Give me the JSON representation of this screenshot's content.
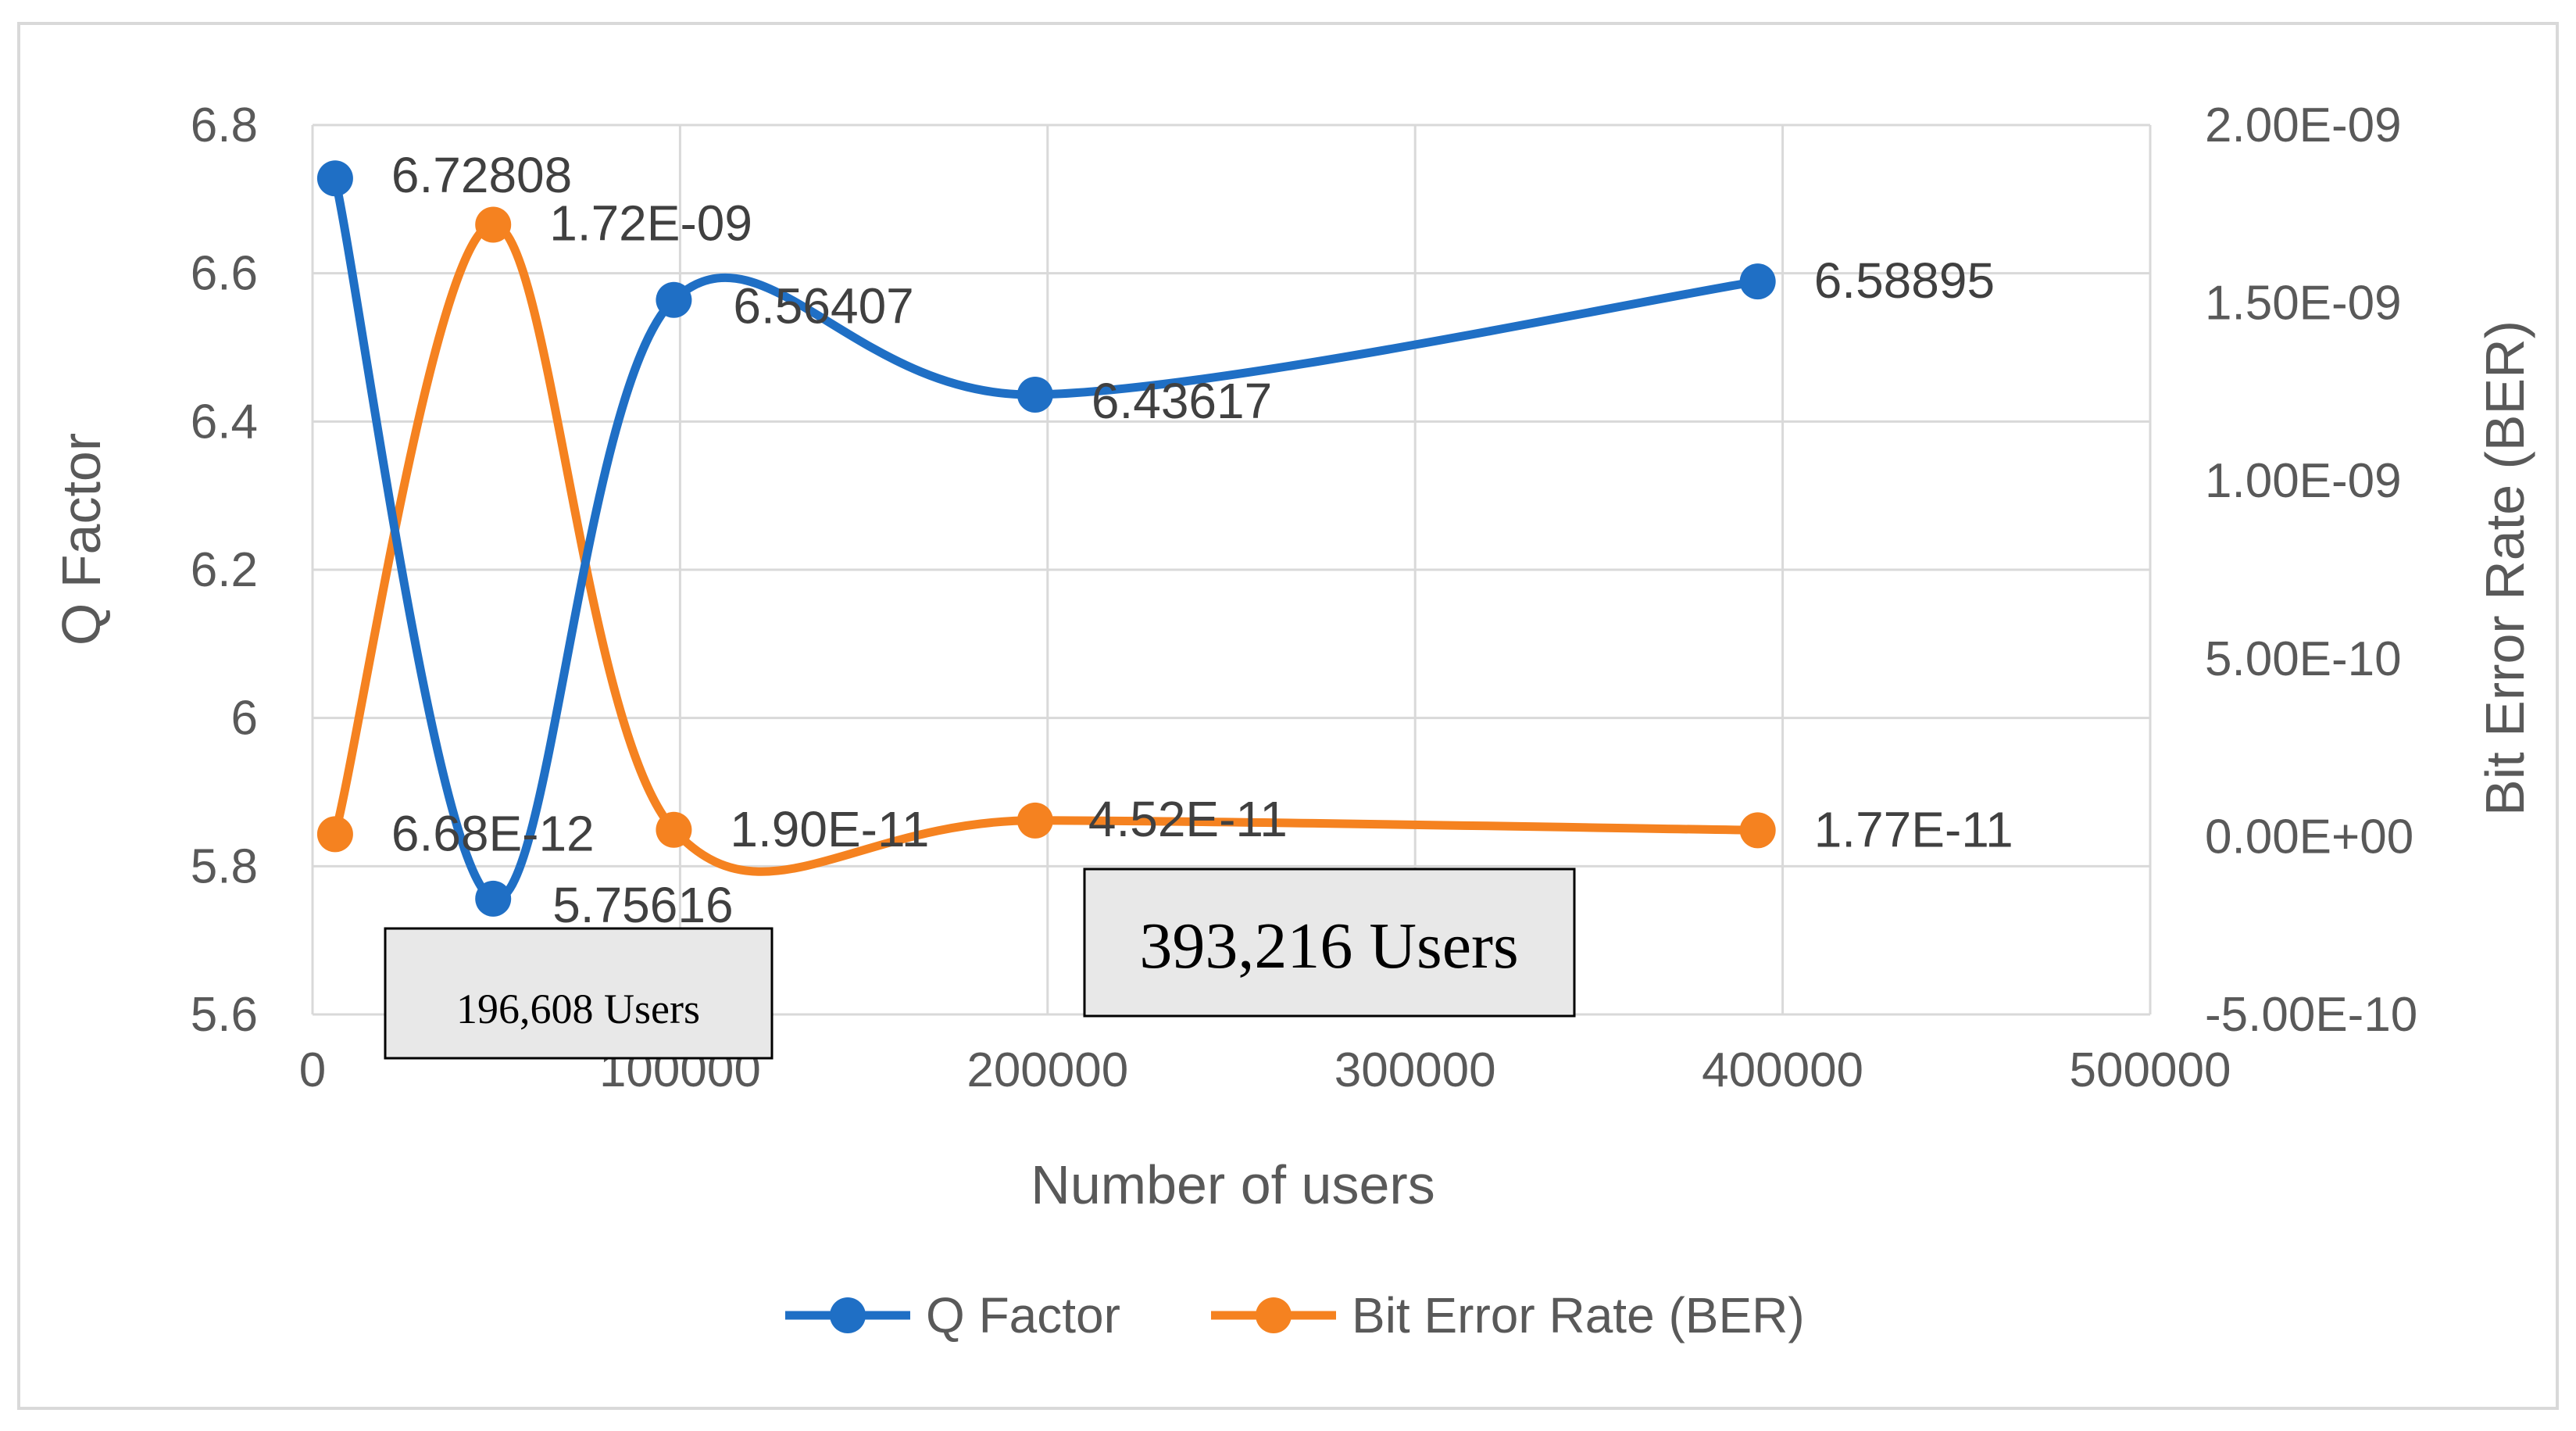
{
  "chart_data": {
    "type": "line",
    "title": "",
    "xlabel": "Number of users",
    "ylabel": "Q Factor",
    "y2label": "Bit Error Rate (BER)",
    "xlim": [
      0,
      500000
    ],
    "ylim": [
      5.6,
      6.8
    ],
    "y2lim": [
      -5e-10,
      2e-09
    ],
    "x_ticks": [
      "0",
      "100000",
      "200000",
      "300000",
      "400000",
      "500000"
    ],
    "y_ticks": [
      "5.6",
      "5.8",
      "6",
      "6.2",
      "6.4",
      "6.6",
      "6.8"
    ],
    "y2_ticks": [
      "-5.00E-10",
      "0.00E+00",
      "5.00E-10",
      "1.00E-09",
      "1.50E-09",
      "2.00E-09"
    ],
    "x": [
      6144,
      49152,
      98304,
      196608,
      393216
    ],
    "series": [
      {
        "name": "Q Factor",
        "axis": "left",
        "color": "#1f6fc5",
        "values": [
          6.72808,
          5.75616,
          6.56407,
          6.43617,
          6.58895
        ],
        "labels": [
          "6.72808",
          "5.75616",
          "6.56407",
          "6.43617",
          "6.58895"
        ]
      },
      {
        "name": "Bit Error Rate (BER)",
        "axis": "right",
        "color": "#f58220",
        "values": [
          6.68e-12,
          1.72e-09,
          1.9e-11,
          4.52e-11,
          1.77e-11
        ],
        "labels": [
          "6.68E-12",
          "1.72E-09",
          "1.90E-11",
          "4.52E-11",
          "1.77E-11"
        ]
      }
    ],
    "grid": true,
    "smoothed": true,
    "legend_position": "bottom",
    "annotations": [
      {
        "text": "196,608 Users"
      },
      {
        "text": "393,216 Users"
      }
    ]
  }
}
